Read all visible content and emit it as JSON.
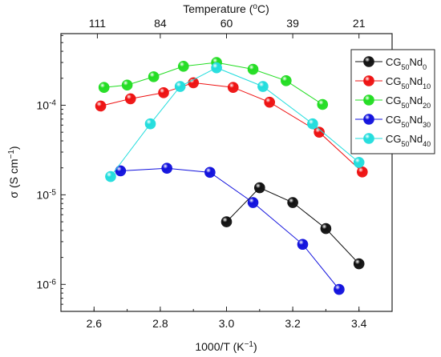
{
  "chart_data": {
    "type": "scatter",
    "x_axis": {
      "min": 2.5,
      "max": 3.5,
      "ticks": [
        2.6,
        2.8,
        3.0,
        3.2,
        3.4
      ],
      "tick_labels": [
        "2.6",
        "2.8",
        "3.0",
        "3.2",
        "3.4"
      ],
      "label": {
        "main": "1000/T (K",
        "sup": "−1",
        "end": ")"
      }
    },
    "x_top_axis": {
      "label": {
        "main": "Temperature (",
        "sup": "o",
        "end": "C)"
      },
      "ticks": [
        2.61,
        2.8,
        3.0,
        3.2,
        3.4
      ],
      "tick_labels": [
        "111",
        "84",
        "60",
        "39",
        "21"
      ]
    },
    "y_axis": {
      "scale": "log",
      "min": 5e-07,
      "max": 0.00063,
      "ticks": [
        1e-06,
        1e-05,
        0.0001
      ],
      "tick_labels": [
        {
          "base": "10",
          "exp": "-6"
        },
        {
          "base": "10",
          "exp": "-5"
        },
        {
          "base": "10",
          "exp": "-4"
        }
      ],
      "label": {
        "main": "σ (S cm",
        "sup": "−1",
        "end": ")"
      }
    },
    "legend": {
      "placement": "top-right",
      "entries": [
        {
          "base": "CG",
          "sub1": "50",
          "mid": "Nd",
          "sub2": "0"
        },
        {
          "base": "CG",
          "sub1": "50",
          "mid": "Nd",
          "sub2": "10"
        },
        {
          "base": "CG",
          "sub1": "50",
          "mid": "Nd",
          "sub2": "20"
        },
        {
          "base": "CG",
          "sub1": "50",
          "mid": "Nd",
          "sub2": "30"
        },
        {
          "base": "CG",
          "sub1": "50",
          "mid": "Nd",
          "sub2": "40"
        }
      ]
    },
    "series": [
      {
        "color": "#111111",
        "x": [
          3.0,
          3.1,
          3.2,
          3.3,
          3.4
        ],
        "y": [
          5e-06,
          1.2e-05,
          8.2e-06,
          4.2e-06,
          1.7e-06
        ]
      },
      {
        "color": "#ee1111",
        "x": [
          2.62,
          2.71,
          2.81,
          2.9,
          3.02,
          3.13,
          3.28,
          3.41
        ],
        "y": [
          9.8e-05,
          0.000118,
          0.000138,
          0.000178,
          0.000158,
          0.000108,
          5e-05,
          1.8e-05
        ]
      },
      {
        "color": "#22dd22",
        "x": [
          2.63,
          2.7,
          2.78,
          2.87,
          2.97,
          3.08,
          3.18,
          3.29
        ],
        "y": [
          0.000158,
          0.000168,
          0.000208,
          0.000272,
          0.0003,
          0.000252,
          0.000188,
          0.000102
        ]
      },
      {
        "color": "#1111dd",
        "x": [
          2.68,
          2.82,
          2.95,
          3.08,
          3.23,
          3.34
        ],
        "y": [
          1.85e-05,
          1.98e-05,
          1.78e-05,
          8.2e-06,
          2.8e-06,
          8.8e-07
        ]
      },
      {
        "color": "#22dddd",
        "x": [
          2.65,
          2.77,
          2.86,
          2.97,
          3.11,
          3.26,
          3.4
        ],
        "y": [
          1.6e-05,
          6.2e-05,
          0.000162,
          0.000262,
          0.000162,
          6.2e-05,
          2.3e-05
        ]
      }
    ]
  }
}
